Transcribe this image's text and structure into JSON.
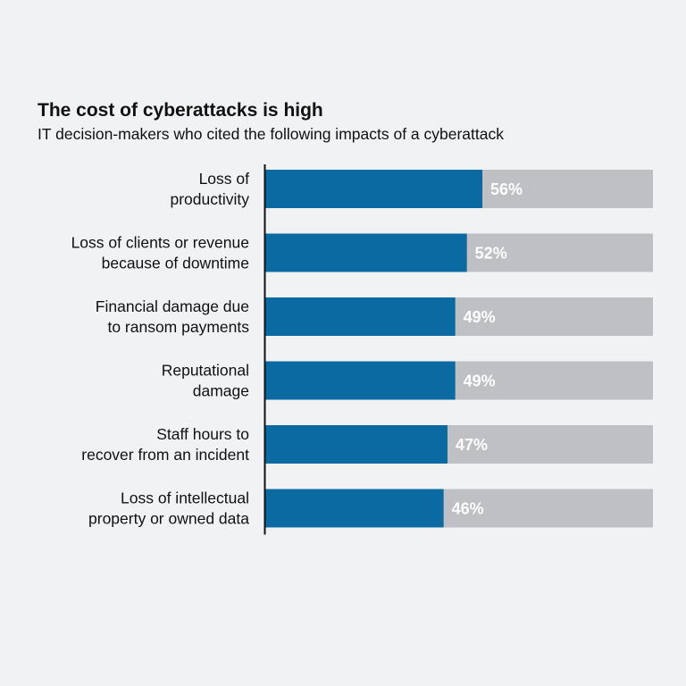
{
  "colors": {
    "background": "#f1f2f4",
    "bar_fill": "#0a6aa1",
    "bar_track": "#bfc0c4",
    "axis_line": "#111111",
    "value_text": "#ffffff"
  },
  "chart_data": {
    "type": "bar",
    "orientation": "horizontal",
    "title": "The cost of cyberattacks is high",
    "subtitle": "IT decision-makers who cited the following impacts of a cyberattack",
    "categories": [
      [
        "Loss of",
        "productivity"
      ],
      [
        "Loss of clients or revenue",
        "because of downtime"
      ],
      [
        "Financial damage due",
        "to ransom payments"
      ],
      [
        "Reputational",
        "damage"
      ],
      [
        "Staff hours to",
        "recover from an incident"
      ],
      [
        "Loss of intellectual",
        "property or owned data"
      ]
    ],
    "values": [
      56,
      52,
      49,
      49,
      47,
      46
    ],
    "value_labels": [
      "56%",
      "52%",
      "49%",
      "49%",
      "47%",
      "46%"
    ],
    "unit": "%",
    "xlim": [
      0,
      100
    ],
    "grid": false,
    "legend": "none"
  }
}
